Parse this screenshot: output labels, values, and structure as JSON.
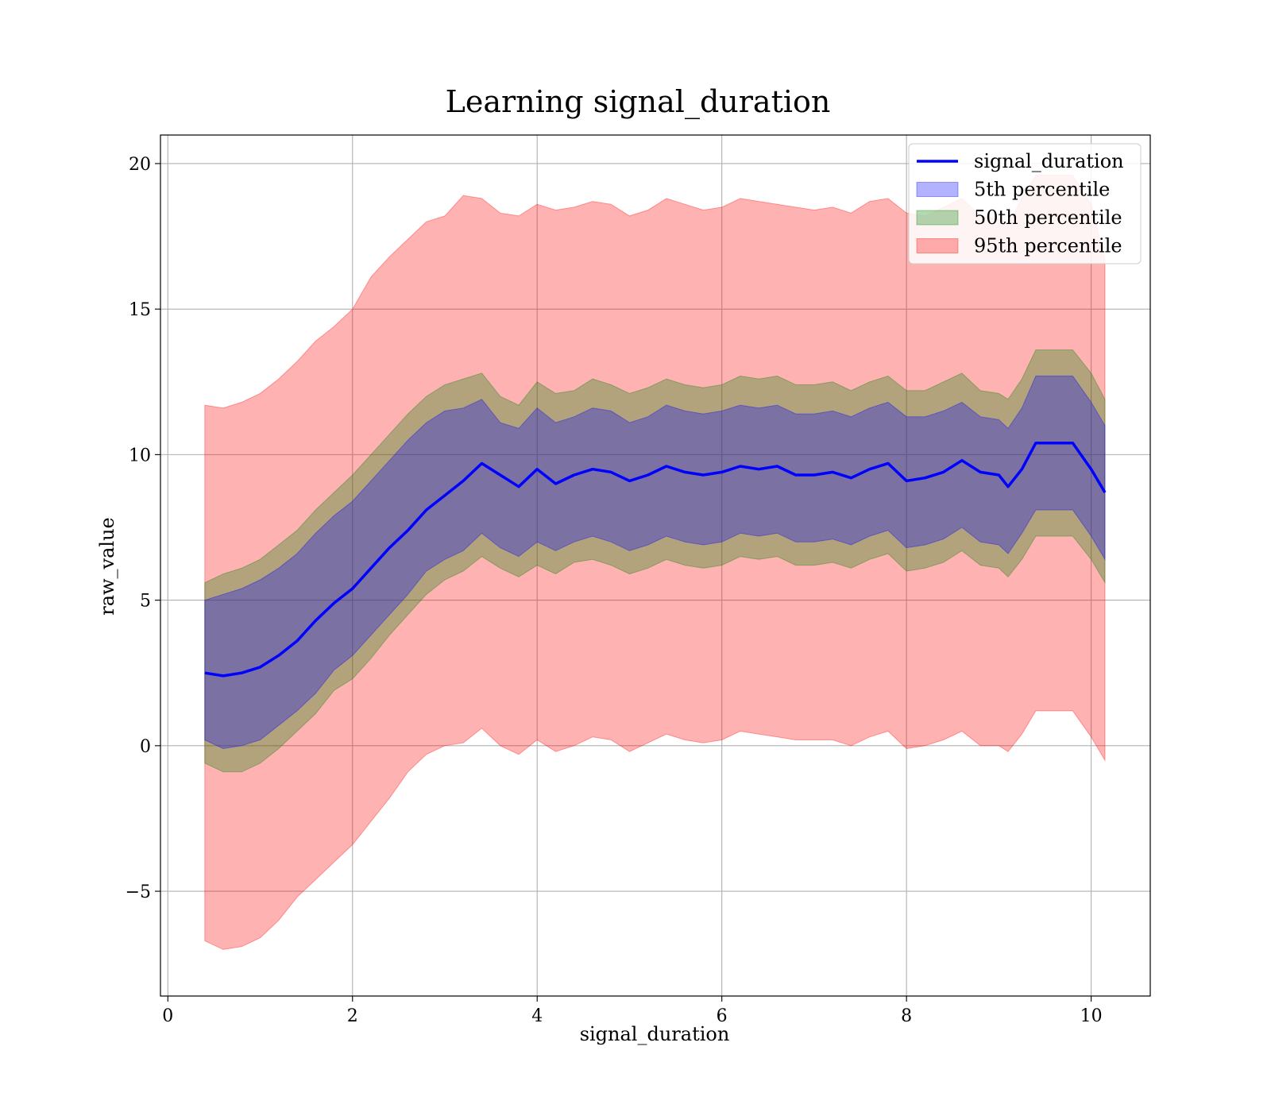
{
  "chart_data": {
    "type": "area",
    "title": "Learning signal_duration",
    "xlabel": "signal_duration",
    "ylabel": "raw_value",
    "xlim": [
      -0.08,
      10.64
    ],
    "ylim": [
      -8.6,
      20.98
    ],
    "grid": true,
    "legend_placement": "top-right",
    "x_ticks": [
      {
        "value": 0,
        "label": "0"
      },
      {
        "value": 2,
        "label": "2"
      },
      {
        "value": 4,
        "label": "4"
      },
      {
        "value": 6,
        "label": "6"
      },
      {
        "value": 8,
        "label": "8"
      },
      {
        "value": 10,
        "label": "10"
      }
    ],
    "y_ticks": [
      {
        "value": -5,
        "label": "−5"
      },
      {
        "value": 0,
        "label": "0"
      },
      {
        "value": 5,
        "label": "5"
      },
      {
        "value": 10,
        "label": "10"
      },
      {
        "value": 15,
        "label": "15"
      },
      {
        "value": 20,
        "label": "20"
      }
    ],
    "x": [
      0.4,
      0.6,
      0.8,
      1.0,
      1.2,
      1.4,
      1.6,
      1.8,
      2.0,
      2.2,
      2.4,
      2.6,
      2.8,
      3.0,
      3.2,
      3.4,
      3.6,
      3.8,
      4.0,
      4.2,
      4.4,
      4.6,
      4.8,
      5.0,
      5.2,
      5.4,
      5.6,
      5.8,
      6.0,
      6.2,
      6.4,
      6.6,
      6.8,
      7.0,
      7.2,
      7.4,
      7.6,
      7.8,
      8.0,
      8.2,
      8.4,
      8.6,
      8.8,
      9.0,
      9.1,
      9.25,
      9.4,
      9.6,
      9.8,
      10.0,
      10.15
    ],
    "series": [
      {
        "name": "signal_duration",
        "kind": "line",
        "color": "#0000ff",
        "values": [
          2.5,
          2.4,
          2.5,
          2.7,
          3.1,
          3.6,
          4.3,
          4.9,
          5.4,
          6.1,
          6.8,
          7.4,
          8.1,
          8.6,
          9.1,
          9.7,
          9.3,
          8.9,
          9.5,
          9.0,
          9.3,
          9.5,
          9.4,
          9.1,
          9.3,
          9.6,
          9.4,
          9.3,
          9.4,
          9.6,
          9.5,
          9.6,
          9.3,
          9.3,
          9.4,
          9.2,
          9.5,
          9.7,
          9.1,
          9.2,
          9.4,
          9.8,
          9.4,
          9.3,
          8.9,
          9.5,
          10.4,
          10.4,
          10.4,
          9.5,
          8.7
        ]
      },
      {
        "name": "5th percentile",
        "kind": "band",
        "color": "#0000ff",
        "upper": [
          5.0,
          5.2,
          5.4,
          5.7,
          6.1,
          6.6,
          7.3,
          7.9,
          8.4,
          9.1,
          9.8,
          10.5,
          11.1,
          11.5,
          11.6,
          11.9,
          11.1,
          10.9,
          11.6,
          11.1,
          11.3,
          11.6,
          11.5,
          11.1,
          11.3,
          11.7,
          11.5,
          11.4,
          11.5,
          11.7,
          11.6,
          11.7,
          11.4,
          11.4,
          11.5,
          11.3,
          11.6,
          11.8,
          11.3,
          11.3,
          11.5,
          11.8,
          11.3,
          11.2,
          10.9,
          11.6,
          12.7,
          12.7,
          12.7,
          11.8,
          11.0
        ],
        "lower": [
          0.2,
          -0.1,
          0.0,
          0.2,
          0.7,
          1.2,
          1.8,
          2.6,
          3.1,
          3.8,
          4.5,
          5.2,
          6.0,
          6.4,
          6.7,
          7.3,
          6.8,
          6.5,
          7.0,
          6.7,
          7.0,
          7.2,
          7.0,
          6.7,
          6.9,
          7.2,
          7.0,
          6.9,
          7.0,
          7.3,
          7.2,
          7.3,
          7.0,
          7.0,
          7.1,
          6.9,
          7.2,
          7.4,
          6.8,
          6.9,
          7.1,
          7.5,
          7.0,
          6.9,
          6.6,
          7.3,
          8.1,
          8.1,
          8.1,
          7.2,
          6.4
        ]
      },
      {
        "name": "50th percentile",
        "kind": "band",
        "color": "#008000",
        "upper": [
          5.6,
          5.9,
          6.1,
          6.4,
          6.9,
          7.4,
          8.1,
          8.7,
          9.3,
          10.0,
          10.7,
          11.4,
          12.0,
          12.4,
          12.6,
          12.8,
          12.0,
          11.7,
          12.5,
          12.1,
          12.2,
          12.6,
          12.4,
          12.1,
          12.3,
          12.6,
          12.4,
          12.3,
          12.4,
          12.7,
          12.6,
          12.7,
          12.4,
          12.4,
          12.5,
          12.2,
          12.5,
          12.7,
          12.2,
          12.2,
          12.5,
          12.8,
          12.2,
          12.1,
          11.9,
          12.6,
          13.6,
          13.6,
          13.6,
          12.8,
          11.9
        ],
        "lower": [
          -0.6,
          -0.9,
          -0.9,
          -0.6,
          -0.1,
          0.5,
          1.1,
          1.9,
          2.3,
          3.0,
          3.8,
          4.5,
          5.2,
          5.7,
          6.0,
          6.5,
          6.1,
          5.8,
          6.2,
          5.9,
          6.3,
          6.4,
          6.2,
          5.9,
          6.1,
          6.4,
          6.2,
          6.1,
          6.2,
          6.5,
          6.4,
          6.5,
          6.2,
          6.2,
          6.3,
          6.1,
          6.4,
          6.6,
          6.0,
          6.1,
          6.3,
          6.7,
          6.2,
          6.1,
          5.8,
          6.4,
          7.2,
          7.2,
          7.2,
          6.4,
          5.6
        ]
      },
      {
        "name": "95th percentile",
        "kind": "band",
        "color": "#ff0000",
        "upper": [
          11.7,
          11.6,
          11.8,
          12.1,
          12.6,
          13.2,
          13.9,
          14.4,
          15.0,
          16.1,
          16.8,
          17.4,
          18.0,
          18.2,
          18.9,
          18.8,
          18.3,
          18.2,
          18.6,
          18.4,
          18.5,
          18.7,
          18.6,
          18.2,
          18.4,
          18.8,
          18.6,
          18.4,
          18.5,
          18.8,
          18.7,
          18.6,
          18.5,
          18.4,
          18.5,
          18.3,
          18.7,
          18.8,
          18.3,
          18.2,
          18.5,
          18.8,
          18.2,
          18.1,
          17.9,
          18.8,
          19.6,
          19.6,
          19.6,
          18.6,
          16.7
        ],
        "lower": [
          -6.7,
          -7.0,
          -6.9,
          -6.6,
          -6.0,
          -5.2,
          -4.6,
          -4.0,
          -3.4,
          -2.6,
          -1.8,
          -0.9,
          -0.3,
          0.0,
          0.1,
          0.6,
          0.0,
          -0.3,
          0.2,
          -0.2,
          0.0,
          0.3,
          0.2,
          -0.2,
          0.1,
          0.4,
          0.2,
          0.1,
          0.2,
          0.5,
          0.4,
          0.3,
          0.2,
          0.2,
          0.2,
          0.0,
          0.3,
          0.5,
          -0.1,
          0.0,
          0.2,
          0.5,
          0.0,
          0.0,
          -0.2,
          0.4,
          1.2,
          1.2,
          1.2,
          0.3,
          -0.5
        ]
      }
    ]
  }
}
